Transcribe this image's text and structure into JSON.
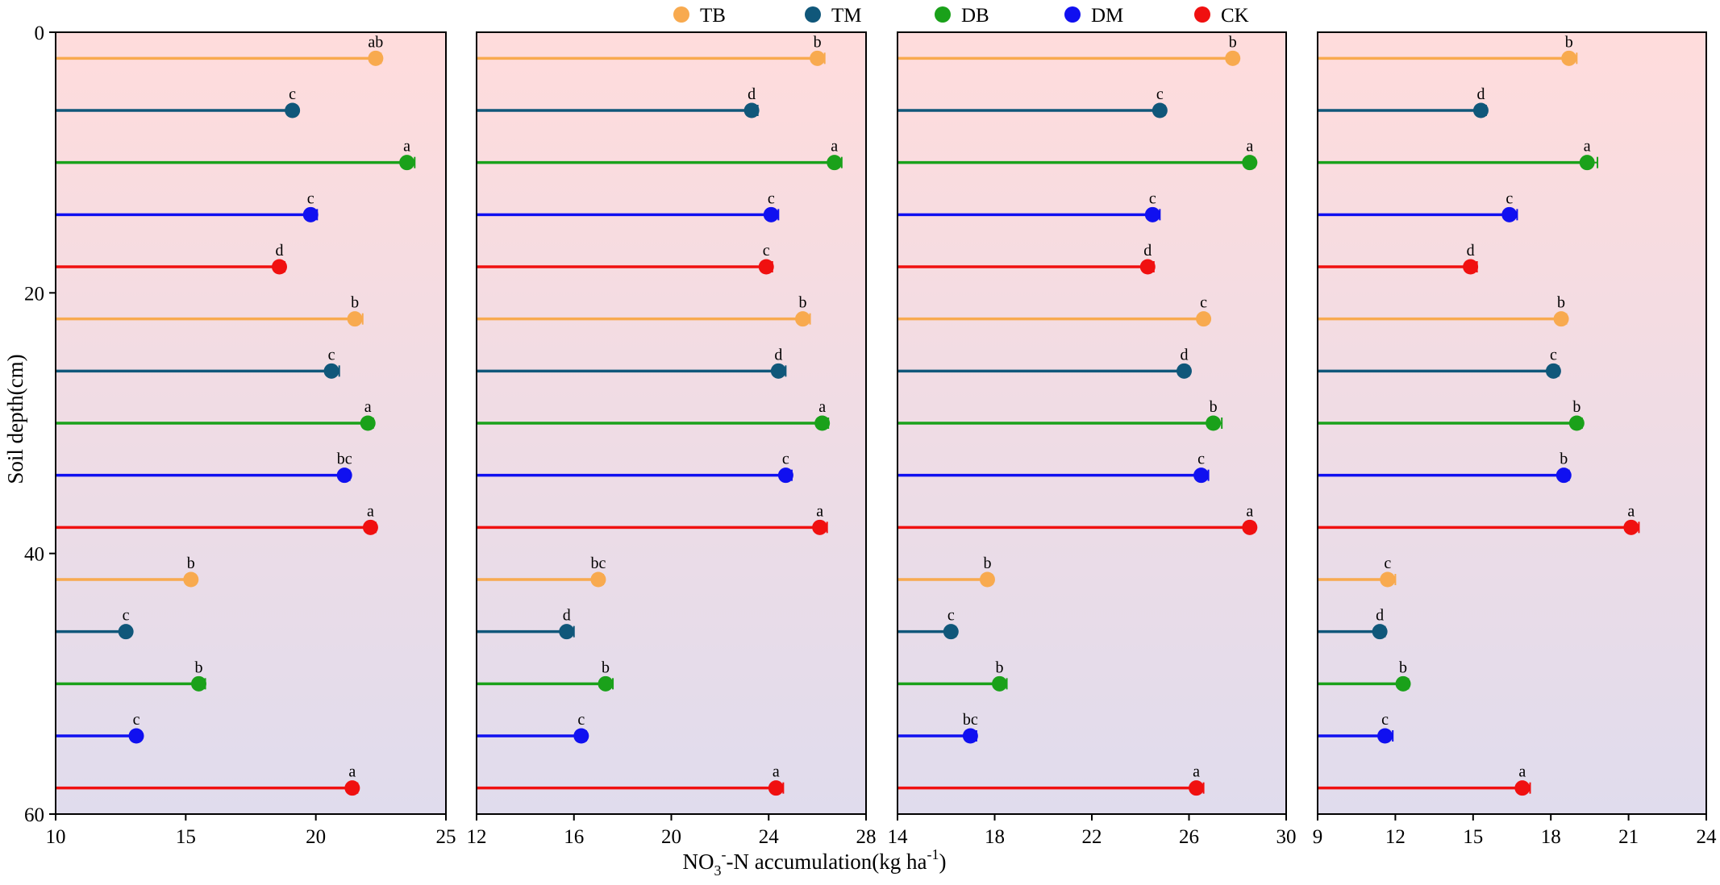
{
  "colors": {
    "TB": "#f8aa4f",
    "TM": "#10577a",
    "DB": "#1aa11a",
    "DM": "#1010f0",
    "CK": "#f01010",
    "background_top": "#ffdcdc",
    "background_bottom": "#e0dced"
  },
  "legend": {
    "items": [
      {
        "key": "TB",
        "label": "TB"
      },
      {
        "key": "TM",
        "label": "TM"
      },
      {
        "key": "DB",
        "label": "DB"
      },
      {
        "key": "DM",
        "label": "DM"
      },
      {
        "key": "CK",
        "label": "CK"
      }
    ]
  },
  "axis": {
    "ylabel": "Soil depth(cm)",
    "xlabel_main": "NO",
    "xlabel_sub": "3",
    "xlabel_sup": "-",
    "xlabel_rest": "-N accumulation(kg ha",
    "xlabel_sup2": "-1",
    "xlabel_end": ")",
    "y_ticks": [
      "0",
      "20",
      "40",
      "60"
    ],
    "y_tick_values": [
      0,
      20,
      40,
      60
    ],
    "ylim": [
      0,
      60
    ]
  },
  "chart_data": [
    {
      "type": "lollipop",
      "panel": 1,
      "xlim": [
        10,
        25
      ],
      "x_ticks": [
        "10",
        "15",
        "20",
        "25"
      ],
      "x_tick_values": [
        10,
        15,
        20,
        25
      ],
      "series_order": [
        "TB",
        "TM",
        "DB",
        "DM",
        "CK"
      ],
      "depths": [
        2,
        6,
        10,
        14,
        18,
        22,
        26,
        30,
        34,
        38,
        42,
        46,
        50,
        54,
        58
      ],
      "items": [
        {
          "series": "TB",
          "depth": 2,
          "value": 22.3,
          "err": 0.2,
          "label": "ab"
        },
        {
          "series": "TM",
          "depth": 6,
          "value": 19.1,
          "err": 0.15,
          "label": "c"
        },
        {
          "series": "DB",
          "depth": 10,
          "value": 23.5,
          "err": 0.3,
          "label": "a"
        },
        {
          "series": "DM",
          "depth": 14,
          "value": 19.8,
          "err": 0.25,
          "label": "c"
        },
        {
          "series": "CK",
          "depth": 18,
          "value": 18.6,
          "err": 0.2,
          "label": "d"
        },
        {
          "series": "TB",
          "depth": 22,
          "value": 21.5,
          "err": 0.3,
          "label": "b"
        },
        {
          "series": "TM",
          "depth": 26,
          "value": 20.6,
          "err": 0.3,
          "label": "c"
        },
        {
          "series": "DB",
          "depth": 30,
          "value": 22.0,
          "err": 0.2,
          "label": "a"
        },
        {
          "series": "DM",
          "depth": 34,
          "value": 21.1,
          "err": 0.2,
          "label": "bc"
        },
        {
          "series": "CK",
          "depth": 38,
          "value": 22.1,
          "err": 0.2,
          "label": "a"
        },
        {
          "series": "TB",
          "depth": 42,
          "value": 15.2,
          "err": 0.15,
          "label": "b"
        },
        {
          "series": "TM",
          "depth": 46,
          "value": 12.7,
          "err": 0.15,
          "label": "c"
        },
        {
          "series": "DB",
          "depth": 50,
          "value": 15.5,
          "err": 0.25,
          "label": "b"
        },
        {
          "series": "DM",
          "depth": 54,
          "value": 13.1,
          "err": 0.15,
          "label": "c"
        },
        {
          "series": "CK",
          "depth": 58,
          "value": 21.4,
          "err": 0.2,
          "label": "a"
        }
      ]
    },
    {
      "type": "lollipop",
      "panel": 2,
      "xlim": [
        12,
        28
      ],
      "x_ticks": [
        "12",
        "16",
        "20",
        "24",
        "28"
      ],
      "x_tick_values": [
        12,
        16,
        20,
        24,
        28
      ],
      "series_order": [
        "TB",
        "TM",
        "DB",
        "DM",
        "CK"
      ],
      "depths": [
        2,
        6,
        10,
        14,
        18,
        22,
        26,
        30,
        34,
        38,
        42,
        46,
        50,
        54,
        58
      ],
      "items": [
        {
          "series": "TB",
          "depth": 2,
          "value": 26.0,
          "err": 0.3,
          "label": "b"
        },
        {
          "series": "TM",
          "depth": 6,
          "value": 23.3,
          "err": 0.25,
          "label": "d"
        },
        {
          "series": "DB",
          "depth": 10,
          "value": 26.7,
          "err": 0.3,
          "label": "a"
        },
        {
          "series": "DM",
          "depth": 14,
          "value": 24.1,
          "err": 0.3,
          "label": "c"
        },
        {
          "series": "CK",
          "depth": 18,
          "value": 23.9,
          "err": 0.25,
          "label": "c"
        },
        {
          "series": "TB",
          "depth": 22,
          "value": 25.4,
          "err": 0.3,
          "label": "b"
        },
        {
          "series": "TM",
          "depth": 26,
          "value": 24.4,
          "err": 0.3,
          "label": "d"
        },
        {
          "series": "DB",
          "depth": 30,
          "value": 26.2,
          "err": 0.25,
          "label": "a"
        },
        {
          "series": "DM",
          "depth": 34,
          "value": 24.7,
          "err": 0.25,
          "label": "c"
        },
        {
          "series": "CK",
          "depth": 38,
          "value": 26.1,
          "err": 0.3,
          "label": "a"
        },
        {
          "series": "TB",
          "depth": 42,
          "value": 17.0,
          "err": 0.2,
          "label": "bc"
        },
        {
          "series": "TM",
          "depth": 46,
          "value": 15.7,
          "err": 0.3,
          "label": "d"
        },
        {
          "series": "DB",
          "depth": 50,
          "value": 17.3,
          "err": 0.3,
          "label": "b"
        },
        {
          "series": "DM",
          "depth": 54,
          "value": 16.3,
          "err": 0.2,
          "label": "c"
        },
        {
          "series": "CK",
          "depth": 58,
          "value": 24.3,
          "err": 0.3,
          "label": "a"
        }
      ]
    },
    {
      "type": "lollipop",
      "panel": 3,
      "xlim": [
        14,
        30
      ],
      "x_ticks": [
        "14",
        "18",
        "22",
        "26",
        "30"
      ],
      "x_tick_values": [
        14,
        18,
        22,
        26,
        30
      ],
      "series_order": [
        "TB",
        "TM",
        "DB",
        "DM",
        "CK"
      ],
      "depths": [
        2,
        6,
        10,
        14,
        18,
        22,
        26,
        30,
        34,
        38,
        42,
        46,
        50,
        54,
        58
      ],
      "items": [
        {
          "series": "TB",
          "depth": 2,
          "value": 27.8,
          "err": 0.2,
          "label": "b"
        },
        {
          "series": "TM",
          "depth": 6,
          "value": 24.8,
          "err": 0.2,
          "label": "c"
        },
        {
          "series": "DB",
          "depth": 10,
          "value": 28.5,
          "err": 0.2,
          "label": "a"
        },
        {
          "series": "DM",
          "depth": 14,
          "value": 24.5,
          "err": 0.3,
          "label": "c"
        },
        {
          "series": "CK",
          "depth": 18,
          "value": 24.3,
          "err": 0.25,
          "label": "d"
        },
        {
          "series": "TB",
          "depth": 22,
          "value": 26.6,
          "err": 0.2,
          "label": "c"
        },
        {
          "series": "TM",
          "depth": 26,
          "value": 25.8,
          "err": 0.2,
          "label": "d"
        },
        {
          "series": "DB",
          "depth": 30,
          "value": 27.0,
          "err": 0.35,
          "label": "b"
        },
        {
          "series": "DM",
          "depth": 34,
          "value": 26.5,
          "err": 0.3,
          "label": "c"
        },
        {
          "series": "CK",
          "depth": 38,
          "value": 28.5,
          "err": 0.2,
          "label": "a"
        },
        {
          "series": "TB",
          "depth": 42,
          "value": 17.7,
          "err": 0.2,
          "label": "b"
        },
        {
          "series": "TM",
          "depth": 46,
          "value": 16.2,
          "err": 0.2,
          "label": "c"
        },
        {
          "series": "DB",
          "depth": 50,
          "value": 18.2,
          "err": 0.3,
          "label": "b"
        },
        {
          "series": "DM",
          "depth": 54,
          "value": 17.0,
          "err": 0.25,
          "label": "bc"
        },
        {
          "series": "CK",
          "depth": 58,
          "value": 26.3,
          "err": 0.3,
          "label": "a"
        }
      ]
    },
    {
      "type": "lollipop",
      "panel": 4,
      "xlim": [
        9,
        24
      ],
      "x_ticks": [
        "9",
        "12",
        "15",
        "18",
        "21",
        "24"
      ],
      "x_tick_values": [
        9,
        12,
        15,
        18,
        21,
        24
      ],
      "series_order": [
        "TB",
        "TM",
        "DB",
        "DM",
        "CK"
      ],
      "depths": [
        2,
        6,
        10,
        14,
        18,
        22,
        26,
        30,
        34,
        38,
        42,
        46,
        50,
        54,
        58
      ],
      "items": [
        {
          "series": "TB",
          "depth": 2,
          "value": 18.7,
          "err": 0.3,
          "label": "b"
        },
        {
          "series": "TM",
          "depth": 6,
          "value": 15.3,
          "err": 0.2,
          "label": "d"
        },
        {
          "series": "DB",
          "depth": 10,
          "value": 19.4,
          "err": 0.4,
          "label": "a"
        },
        {
          "series": "DM",
          "depth": 14,
          "value": 16.4,
          "err": 0.3,
          "label": "c"
        },
        {
          "series": "CK",
          "depth": 18,
          "value": 14.9,
          "err": 0.25,
          "label": "d"
        },
        {
          "series": "TB",
          "depth": 22,
          "value": 18.4,
          "err": 0.2,
          "label": "b"
        },
        {
          "series": "TM",
          "depth": 26,
          "value": 18.1,
          "err": 0.2,
          "label": "c"
        },
        {
          "series": "DB",
          "depth": 30,
          "value": 19.0,
          "err": 0.2,
          "label": "b"
        },
        {
          "series": "DM",
          "depth": 34,
          "value": 18.5,
          "err": 0.2,
          "label": "b"
        },
        {
          "series": "CK",
          "depth": 38,
          "value": 21.1,
          "err": 0.3,
          "label": "a"
        },
        {
          "series": "TB",
          "depth": 42,
          "value": 11.7,
          "err": 0.3,
          "label": "c"
        },
        {
          "series": "TM",
          "depth": 46,
          "value": 11.4,
          "err": 0.2,
          "label": "d"
        },
        {
          "series": "DB",
          "depth": 50,
          "value": 12.3,
          "err": 0.2,
          "label": "b"
        },
        {
          "series": "DM",
          "depth": 54,
          "value": 11.6,
          "err": 0.3,
          "label": "c"
        },
        {
          "series": "CK",
          "depth": 58,
          "value": 16.9,
          "err": 0.3,
          "label": "a"
        }
      ]
    }
  ]
}
